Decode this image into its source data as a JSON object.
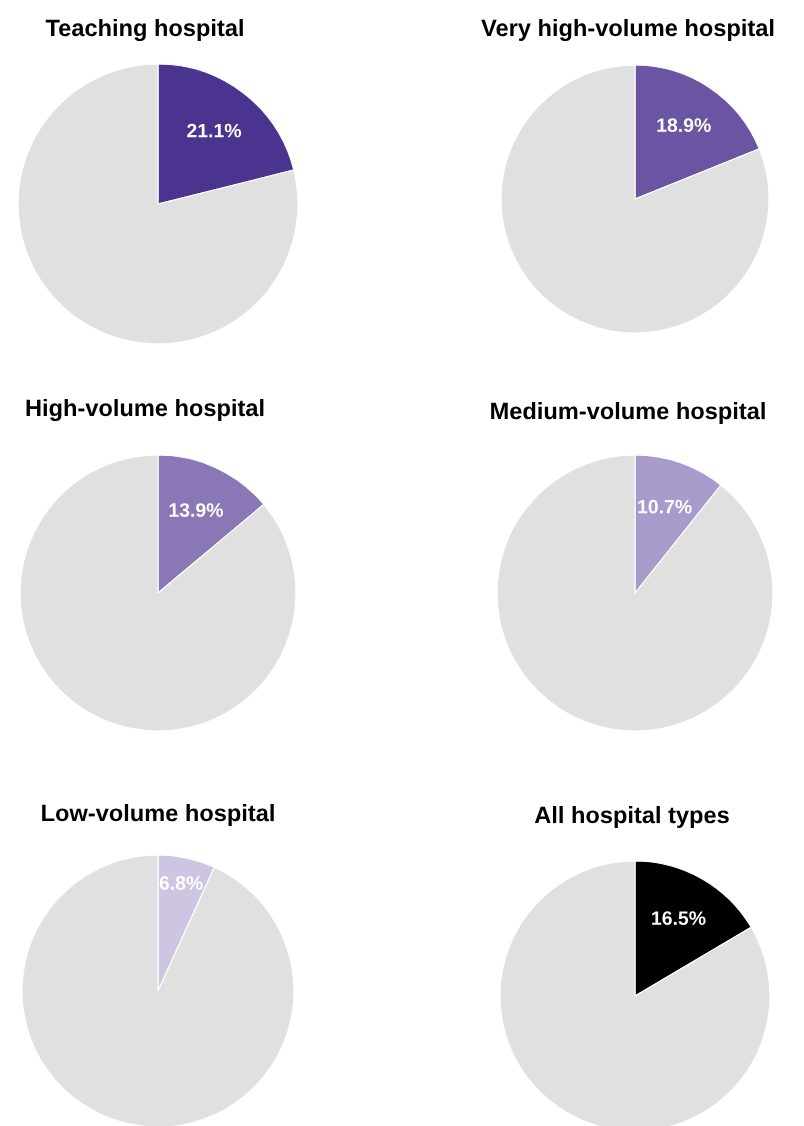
{
  "chart_data": [
    {
      "type": "pie",
      "title": "Teaching hospital",
      "categories": [
        null,
        null
      ],
      "values": [
        21.1,
        78.9
      ],
      "colors": [
        "#4b3390",
        "#e0e0e0"
      ],
      "value_labels": [
        "21.1%",
        null
      ]
    },
    {
      "type": "pie",
      "title": "Very high-volume hospital",
      "categories": [
        null,
        null
      ],
      "values": [
        18.9,
        81.1
      ],
      "colors": [
        "#6a55a3",
        "#e0e0e0"
      ],
      "value_labels": [
        "18.9%",
        null
      ]
    },
    {
      "type": "pie",
      "title": "High-volume hospital",
      "categories": [
        null,
        null
      ],
      "values": [
        13.9,
        86.1
      ],
      "colors": [
        "#8a78b6",
        "#e0e0e0"
      ],
      "value_labels": [
        "13.9%",
        null
      ]
    },
    {
      "type": "pie",
      "title": "Medium-volume hospital",
      "categories": [
        null,
        null
      ],
      "values": [
        10.7,
        89.3
      ],
      "colors": [
        "#a89bcb",
        "#e0e0e0"
      ],
      "value_labels": [
        "10.7%",
        null
      ]
    },
    {
      "type": "pie",
      "title": "Low-volume hospital",
      "categories": [
        null,
        null
      ],
      "values": [
        6.8,
        93.2
      ],
      "colors": [
        "#cdc5e1",
        "#e0e0e0"
      ],
      "value_labels": [
        "6.8%",
        null
      ]
    },
    {
      "type": "pie",
      "title": "All hospital types",
      "categories": [
        null,
        null
      ],
      "values": [
        16.5,
        83.5
      ],
      "colors": [
        "#000000",
        "#e0e0e0"
      ],
      "value_labels": [
        "16.5%",
        null
      ]
    }
  ]
}
